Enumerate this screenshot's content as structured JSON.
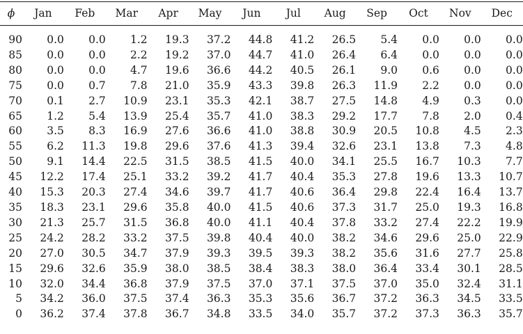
{
  "table": {
    "headers": [
      "ϕ",
      "Jan",
      "Feb",
      "Mar",
      "Apr",
      "May",
      "Jun",
      "Jul",
      "Aug",
      "Sep",
      "Oct",
      "Nov",
      "Dec"
    ],
    "rows": [
      {
        "lat": "90",
        "values": [
          "0.0",
          "0.0",
          "1.2",
          "19.3",
          "37.2",
          "44.8",
          "41.2",
          "26.5",
          "5.4",
          "0.0",
          "0.0",
          "0.0"
        ]
      },
      {
        "lat": "85",
        "values": [
          "0.0",
          "0.0",
          "2.2",
          "19.2",
          "37.0",
          "44.7",
          "41.0",
          "26.4",
          "6.4",
          "0.0",
          "0.0",
          "0.0"
        ]
      },
      {
        "lat": "80",
        "values": [
          "0.0",
          "0.0",
          "4.7",
          "19.6",
          "36.6",
          "44.2",
          "40.5",
          "26.1",
          "9.0",
          "0.6",
          "0.0",
          "0.0"
        ]
      },
      {
        "lat": "75",
        "values": [
          "0.0",
          "0.7",
          "7.8",
          "21.0",
          "35.9",
          "43.3",
          "39.8",
          "26.3",
          "11.9",
          "2.2",
          "0.0",
          "0.0"
        ]
      },
      {
        "lat": "70",
        "values": [
          "0.1",
          "2.7",
          "10.9",
          "23.1",
          "35.3",
          "42.1",
          "38.7",
          "27.5",
          "14.8",
          "4.9",
          "0.3",
          "0.0"
        ]
      },
      {
        "lat": "65",
        "values": [
          "1.2",
          "5.4",
          "13.9",
          "25.4",
          "35.7",
          "41.0",
          "38.3",
          "29.2",
          "17.7",
          "7.8",
          "2.0",
          "0.4"
        ]
      },
      {
        "lat": "60",
        "values": [
          "3.5",
          "8.3",
          "16.9",
          "27.6",
          "36.6",
          "41.0",
          "38.8",
          "30.9",
          "20.5",
          "10.8",
          "4.5",
          "2.3"
        ]
      },
      {
        "lat": "55",
        "values": [
          "6.2",
          "11.3",
          "19.8",
          "29.6",
          "37.6",
          "41.3",
          "39.4",
          "32.6",
          "23.1",
          "13.8",
          "7.3",
          "4.8"
        ]
      },
      {
        "lat": "50",
        "values": [
          "9.1",
          "14.4",
          "22.5",
          "31.5",
          "38.5",
          "41.5",
          "40.0",
          "34.1",
          "25.5",
          "16.7",
          "10.3",
          "7.7"
        ]
      },
      {
        "lat": "45",
        "values": [
          "12.2",
          "17.4",
          "25.1",
          "33.2",
          "39.2",
          "41.7",
          "40.4",
          "35.3",
          "27.8",
          "19.6",
          "13.3",
          "10.7"
        ]
      },
      {
        "lat": "40",
        "values": [
          "15.3",
          "20.3",
          "27.4",
          "34.6",
          "39.7",
          "41.7",
          "40.6",
          "36.4",
          "29.8",
          "22.4",
          "16.4",
          "13.7"
        ]
      },
      {
        "lat": "35",
        "values": [
          "18.3",
          "23.1",
          "29.6",
          "35.8",
          "40.0",
          "41.5",
          "40.6",
          "37.3",
          "31.7",
          "25.0",
          "19.3",
          "16.8"
        ]
      },
      {
        "lat": "30",
        "values": [
          "21.3",
          "25.7",
          "31.5",
          "36.8",
          "40.0",
          "41.1",
          "40.4",
          "37.8",
          "33.2",
          "27.4",
          "22.2",
          "19.9"
        ]
      },
      {
        "lat": "25",
        "values": [
          "24.2",
          "28.2",
          "33.2",
          "37.5",
          "39.8",
          "40.4",
          "40.0",
          "38.2",
          "34.6",
          "29.6",
          "25.0",
          "22.9"
        ]
      },
      {
        "lat": "20",
        "values": [
          "27.0",
          "30.5",
          "34.7",
          "37.9",
          "39.3",
          "39.5",
          "39.3",
          "38.2",
          "35.6",
          "31.6",
          "27.7",
          "25.8"
        ]
      },
      {
        "lat": "15",
        "values": [
          "29.6",
          "32.6",
          "35.9",
          "38.0",
          "38.5",
          "38.4",
          "38.3",
          "38.0",
          "36.4",
          "33.4",
          "30.1",
          "28.5"
        ]
      },
      {
        "lat": "10",
        "values": [
          "32.0",
          "34.4",
          "36.8",
          "37.9",
          "37.5",
          "37.0",
          "37.1",
          "37.5",
          "37.0",
          "35.0",
          "32.4",
          "31.1"
        ]
      },
      {
        "lat": "5",
        "values": [
          "34.2",
          "36.0",
          "37.5",
          "37.4",
          "36.3",
          "35.3",
          "35.6",
          "36.7",
          "37.2",
          "36.3",
          "34.5",
          "33.5"
        ]
      },
      {
        "lat": "0",
        "values": [
          "36.2",
          "37.4",
          "37.8",
          "36.7",
          "34.8",
          "33.5",
          "34.0",
          "35.7",
          "37.2",
          "37.3",
          "36.3",
          "35.7"
        ]
      }
    ]
  }
}
